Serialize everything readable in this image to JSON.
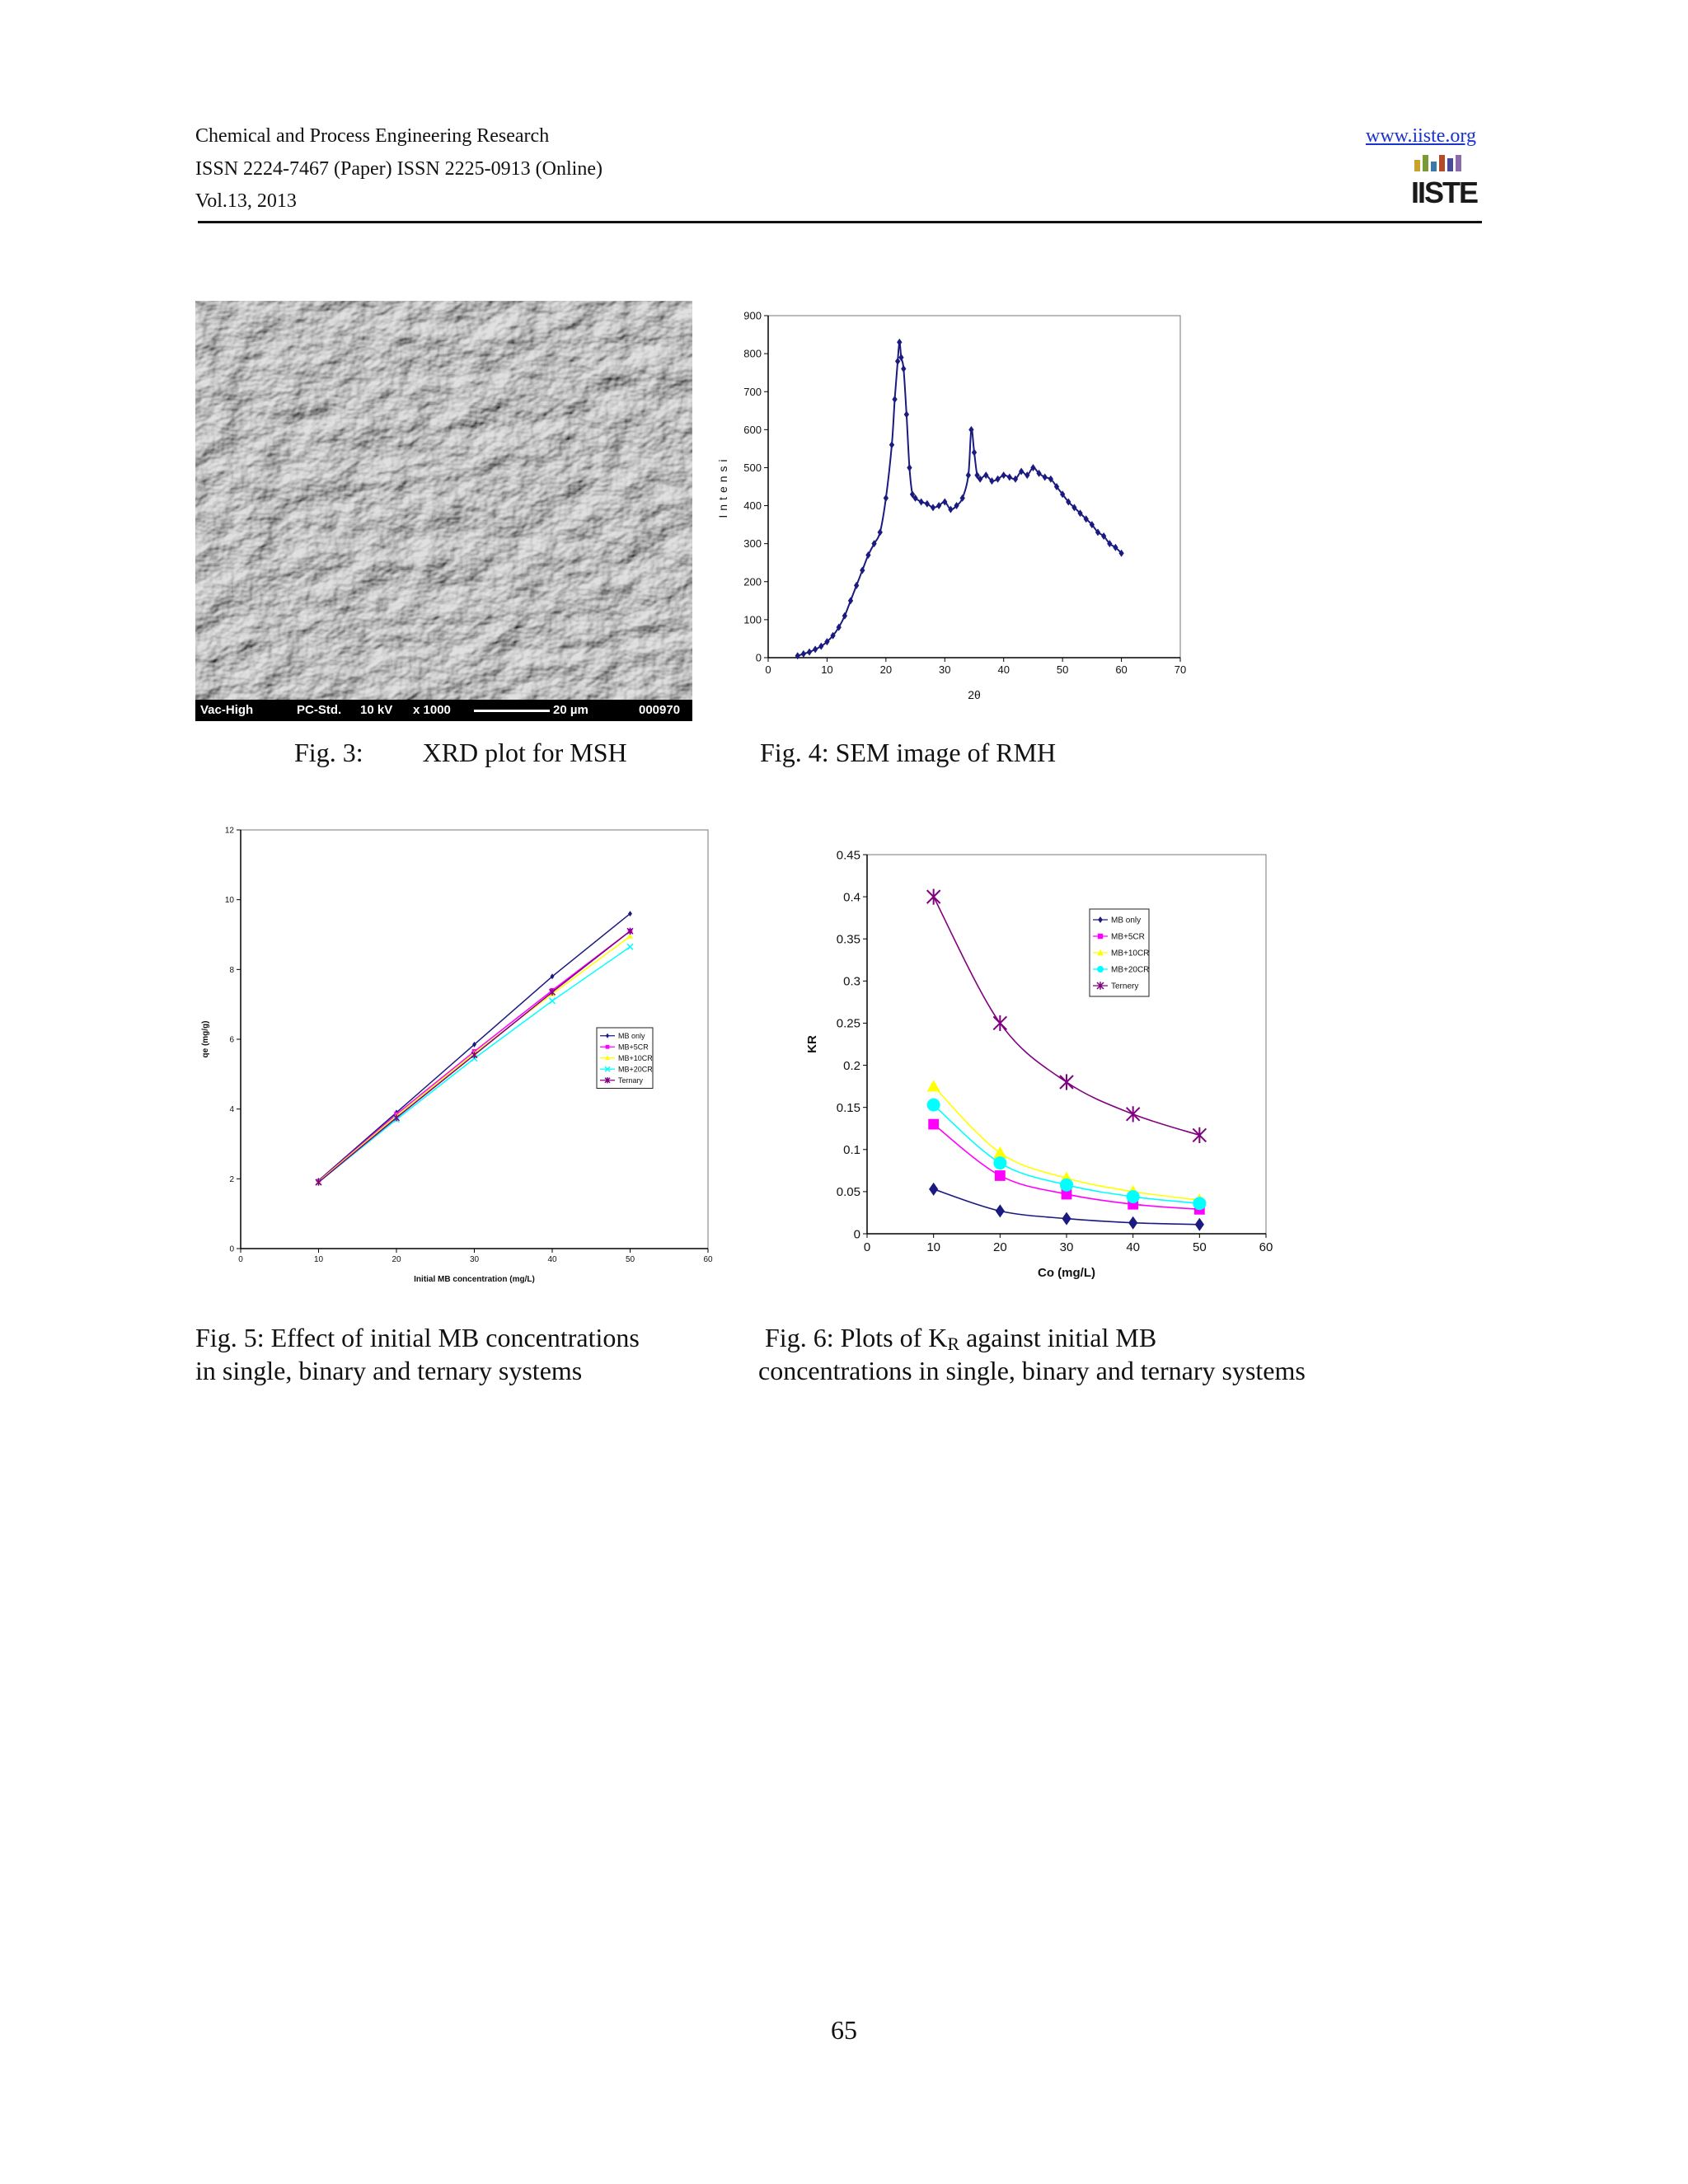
{
  "header": {
    "journal": "Chemical and Process Engineering Research",
    "issn": "ISSN 2224-7467 (Paper) ISSN 2225-0913 (Online)",
    "volume": "Vol.13, 2013",
    "url": "www.iiste.org",
    "logo_text": "IISTE",
    "logo_colors": [
      "#c9a227",
      "#7a9a3a",
      "#3a7aa8",
      "#b54a2a",
      "#4a4a9a",
      "#8a6aa8"
    ]
  },
  "sem": {
    "labels": [
      "Vac-High",
      "PC-Std.",
      "10 kV",
      "x 1000",
      "20 µm",
      "000970"
    ]
  },
  "captions": {
    "fig3_label": "Fig. 3:",
    "fig3_text": "XRD plot for MSH",
    "fig4": "Fig. 4: SEM image of RMH",
    "fig5_line1": "Fig. 5: Effect of initial MB concentrations",
    "fig5_line2": "in single, binary and ternary systems",
    "fig6_pre": "Fig. 6: Plots of K",
    "fig6_sub": "R",
    "fig6_post": " against initial MB",
    "fig6_line2": "concentrations in single, binary and ternary systems"
  },
  "page_number": "65",
  "chart_data": [
    {
      "type": "scatter",
      "xlabel": "2θ",
      "ylabel": "Intensi",
      "xlim": [
        0,
        70
      ],
      "ylim": [
        0,
        900
      ],
      "xticks": [
        0,
        10,
        20,
        30,
        40,
        50,
        60,
        70
      ],
      "yticks": [
        0,
        100,
        200,
        300,
        400,
        500,
        600,
        700,
        800,
        900
      ],
      "color": "#1a1a80",
      "grid": false,
      "series": [
        {
          "x": [
            5,
            6,
            7,
            8,
            9,
            10,
            11,
            12,
            13,
            14,
            15,
            16,
            17,
            18,
            19,
            20,
            21,
            21.5,
            22,
            22.3,
            22.6,
            23,
            23.5,
            24,
            24.5,
            25,
            26,
            27,
            28,
            29,
            30,
            31,
            32,
            33,
            34,
            34.5,
            35,
            35.5,
            36,
            37,
            38,
            39,
            40,
            41,
            42,
            43,
            44,
            45,
            46,
            47,
            48,
            49,
            50,
            51,
            52,
            53,
            54,
            55,
            56,
            57,
            58,
            59,
            60
          ],
          "y": [
            5,
            10,
            15,
            22,
            30,
            42,
            58,
            80,
            110,
            150,
            190,
            230,
            270,
            300,
            330,
            420,
            560,
            680,
            780,
            830,
            790,
            760,
            640,
            500,
            430,
            420,
            410,
            405,
            395,
            400,
            410,
            390,
            400,
            420,
            480,
            600,
            540,
            480,
            470,
            480,
            465,
            470,
            480,
            475,
            470,
            490,
            480,
            500,
            485,
            475,
            470,
            450,
            430,
            410,
            395,
            380,
            365,
            350,
            330,
            320,
            300,
            290,
            275
          ]
        }
      ]
    },
    {
      "type": "line",
      "xlabel": "Initial MB concentration (mg/L)",
      "ylabel": "qe (mg/g)",
      "xlim": [
        0,
        60
      ],
      "ylim": [
        0,
        12
      ],
      "xticks": [
        0,
        10,
        20,
        30,
        40,
        50,
        60
      ],
      "yticks": [
        0,
        2,
        4,
        6,
        8,
        10,
        12
      ],
      "legend_position": "center-right",
      "x": [
        10,
        20,
        30,
        40,
        50
      ],
      "series": [
        {
          "name": "MB only",
          "values": [
            1.95,
            3.9,
            5.85,
            7.8,
            9.6
          ],
          "color": "#1a1a80",
          "marker": "diamond"
        },
        {
          "name": "MB+5CR",
          "values": [
            1.93,
            3.85,
            5.65,
            7.4,
            9.1
          ],
          "color": "#ff00ff",
          "marker": "square"
        },
        {
          "name": "MB+10CR",
          "values": [
            1.92,
            3.8,
            5.6,
            7.3,
            8.95
          ],
          "color": "#ffff00",
          "marker": "triangle"
        },
        {
          "name": "MB+20CR",
          "values": [
            1.9,
            3.7,
            5.45,
            7.1,
            8.65
          ],
          "color": "#00ffff",
          "marker": "x"
        },
        {
          "name": "Ternary",
          "values": [
            1.9,
            3.75,
            5.55,
            7.35,
            9.1
          ],
          "color": "#800080",
          "marker": "star"
        }
      ]
    },
    {
      "type": "line",
      "xlabel": "Co (mg/L)",
      "ylabel": "KR",
      "xlim": [
        0,
        60
      ],
      "ylim": [
        0,
        0.45
      ],
      "xticks": [
        0,
        10,
        20,
        30,
        40,
        50,
        60
      ],
      "yticks": [
        0,
        0.05,
        0.1,
        0.15,
        0.2,
        0.25,
        0.3,
        0.35,
        0.4,
        0.45
      ],
      "legend_position": "top-right",
      "x": [
        10,
        20,
        30,
        40,
        50
      ],
      "series": [
        {
          "name": "MB only",
          "values": [
            0.053,
            0.027,
            0.018,
            0.013,
            0.011
          ],
          "color": "#1a1a80",
          "marker": "diamond"
        },
        {
          "name": "MB+5CR",
          "values": [
            0.13,
            0.069,
            0.047,
            0.035,
            0.029
          ],
          "color": "#ff00ff",
          "marker": "square"
        },
        {
          "name": "MB+10CR",
          "values": [
            0.175,
            0.096,
            0.066,
            0.05,
            0.04
          ],
          "color": "#ffff00",
          "marker": "triangle"
        },
        {
          "name": "MB+20CR",
          "values": [
            0.153,
            0.084,
            0.058,
            0.044,
            0.036
          ],
          "color": "#00ffff",
          "marker": "circle"
        },
        {
          "name": "Ternery",
          "values": [
            0.4,
            0.25,
            0.18,
            0.142,
            0.117
          ],
          "color": "#800080",
          "marker": "star"
        }
      ]
    }
  ]
}
